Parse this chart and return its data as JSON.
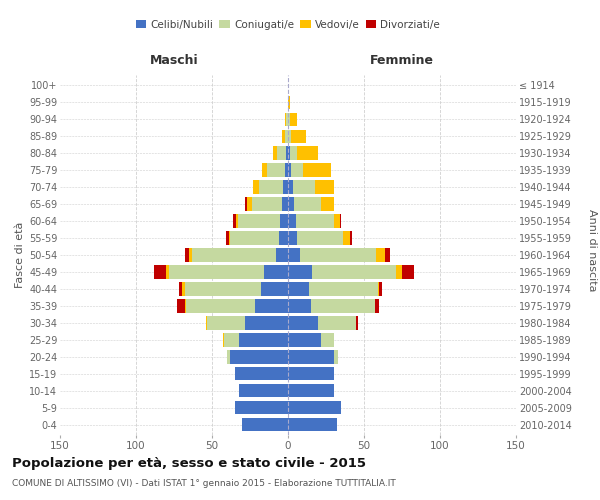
{
  "age_groups": [
    "0-4",
    "5-9",
    "10-14",
    "15-19",
    "20-24",
    "25-29",
    "30-34",
    "35-39",
    "40-44",
    "45-49",
    "50-54",
    "55-59",
    "60-64",
    "65-69",
    "70-74",
    "75-79",
    "80-84",
    "85-89",
    "90-94",
    "95-99",
    "100+"
  ],
  "birth_years": [
    "2010-2014",
    "2005-2009",
    "2000-2004",
    "1995-1999",
    "1990-1994",
    "1985-1989",
    "1980-1984",
    "1975-1979",
    "1970-1974",
    "1965-1969",
    "1960-1964",
    "1955-1959",
    "1950-1954",
    "1945-1949",
    "1940-1944",
    "1935-1939",
    "1930-1934",
    "1925-1929",
    "1920-1924",
    "1915-1919",
    "≤ 1914"
  ],
  "male_celibe": [
    30,
    35,
    32,
    35,
    38,
    32,
    28,
    22,
    18,
    16,
    8,
    6,
    5,
    4,
    3,
    2,
    1,
    0,
    0,
    0,
    0
  ],
  "male_coniugato": [
    0,
    0,
    0,
    0,
    2,
    10,
    25,
    45,
    50,
    62,
    55,
    32,
    28,
    20,
    16,
    12,
    6,
    2,
    1,
    0,
    0
  ],
  "male_vedovo": [
    0,
    0,
    0,
    0,
    0,
    1,
    1,
    1,
    2,
    2,
    2,
    1,
    1,
    3,
    4,
    3,
    3,
    2,
    1,
    0,
    0
  ],
  "male_divorziato": [
    0,
    0,
    0,
    0,
    0,
    0,
    0,
    5,
    2,
    8,
    3,
    2,
    2,
    1,
    0,
    0,
    0,
    0,
    0,
    0,
    0
  ],
  "female_celibe": [
    32,
    35,
    30,
    30,
    30,
    22,
    20,
    15,
    14,
    16,
    8,
    6,
    5,
    4,
    3,
    2,
    1,
    0,
    0,
    0,
    0
  ],
  "female_coniugato": [
    0,
    0,
    0,
    0,
    3,
    8,
    25,
    42,
    45,
    55,
    50,
    30,
    25,
    18,
    15,
    8,
    5,
    2,
    1,
    0,
    0
  ],
  "female_vedovo": [
    0,
    0,
    0,
    0,
    0,
    0,
    0,
    0,
    1,
    4,
    6,
    5,
    4,
    8,
    12,
    18,
    14,
    10,
    5,
    1,
    0
  ],
  "female_divorziato": [
    0,
    0,
    0,
    0,
    0,
    0,
    1,
    3,
    2,
    8,
    3,
    1,
    1,
    0,
    0,
    0,
    0,
    0,
    0,
    0,
    0
  ],
  "color_celibe": "#4472c4",
  "color_coniugato": "#c5d9a0",
  "color_vedovo": "#ffc000",
  "color_divorziato": "#c00000",
  "title": "Popolazione per età, sesso e stato civile - 2015",
  "subtitle": "COMUNE DI ALTISSIMO (VI) - Dati ISTAT 1° gennaio 2015 - Elaborazione TUTTITALIA.IT",
  "xlabel_left": "Maschi",
  "xlabel_right": "Femmine",
  "ylabel_left": "Fasce di età",
  "ylabel_right": "Anni di nascita",
  "xlim": 150,
  "bg_color": "#ffffff",
  "grid_color": "#d0d0d0"
}
